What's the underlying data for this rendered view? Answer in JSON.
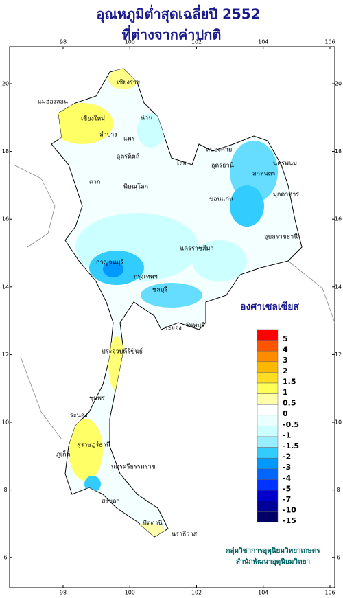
{
  "title": [
    "อุณหภูมิต่ำสุดเฉลี่ยปี 2552",
    "ที่ต่างจากค่าปกติ"
  ],
  "longitude_ticks": [
    98,
    100,
    102,
    104,
    106
  ],
  "latitude_ticks": [
    20,
    18,
    16,
    14,
    12,
    10,
    8,
    6
  ],
  "legend": {
    "title": "องศาเซลเซียส",
    "items": [
      {
        "label": "5",
        "color": "#ff0000"
      },
      {
        "label": "4",
        "color": "#ff5500"
      },
      {
        "label": "3",
        "color": "#ff8c00"
      },
      {
        "label": "2",
        "color": "#ffb800"
      },
      {
        "label": "1.5",
        "color": "#ffdd22"
      },
      {
        "label": "1",
        "color": "#ffff55"
      },
      {
        "label": "0.5",
        "color": "#ffffaa"
      },
      {
        "label": "0",
        "color": "#ffffff"
      },
      {
        "label": "-0.5",
        "color": "#eaffff"
      },
      {
        "label": "-1",
        "color": "#ccffff"
      },
      {
        "label": "-1.5",
        "color": "#99eeff"
      },
      {
        "label": "-2",
        "color": "#33ccff"
      },
      {
        "label": "-3",
        "color": "#0099ff"
      },
      {
        "label": "-4",
        "color": "#0066ff"
      },
      {
        "label": "-5",
        "color": "#0033ff"
      },
      {
        "label": "-7",
        "color": "#0000cc"
      },
      {
        "label": "-10",
        "color": "#000099"
      },
      {
        "label": "-15",
        "color": "#000066"
      }
    ]
  },
  "places": [
    "เชียงราย",
    "เชียงใหม่",
    "ลำปาง",
    "แม่ฮ่องสอน",
    "น่าน",
    "แพร่",
    "อุตรดิตถ์",
    "ตาก",
    "หนองคาย",
    "อุดรธานี",
    "นครพนม",
    "สกลนคร",
    "มุกดาหาร",
    "ขอนแก่น",
    "อุบลราชธานี",
    "นครราชสีมา",
    "กรุงเทพฯ",
    "กาญจนบุรี",
    "ชลบุรี",
    "ระยอง",
    "จันทบุรี",
    "ประจวบคีรีขันธ์",
    "ชุมพร",
    "ระนอง",
    "สุราษฎร์ธานี",
    "นครศรีธรรมราช",
    "ภูเก็ต",
    "สงขลา",
    "ปัตตานี",
    "นราธิวาส",
    "พิษณุโลก",
    "เลย"
  ],
  "credits": [
    "กลุ่มวิชาการอุตุนิยมวิทยาเกษตร",
    "สำนักพัฒนาอุตุนิยมวิทยา"
  ]
}
